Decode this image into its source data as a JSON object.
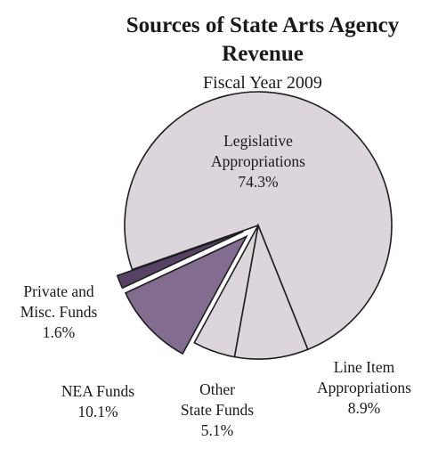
{
  "chart_data": {
    "type": "pie",
    "title_lines": [
      "Sources of State Arts Agency",
      "Revenue"
    ],
    "subtitle": "Fiscal Year 2009",
    "slices": [
      {
        "key": "legislative",
        "label_lines": [
          "Legislative",
          "Appropriations"
        ],
        "value": 74.3,
        "value_text": "74.3%",
        "color": "#dcd5dc",
        "exploded": false
      },
      {
        "key": "line-item",
        "label_lines": [
          "Line Item",
          "Appropriations"
        ],
        "value": 8.9,
        "value_text": "8.9%",
        "color": "#dcd5dc",
        "exploded": false
      },
      {
        "key": "other-state",
        "label_lines": [
          "Other",
          "State Funds"
        ],
        "value": 5.1,
        "value_text": "5.1%",
        "color": "#dcd5dc",
        "exploded": false
      },
      {
        "key": "nea",
        "label_lines": [
          "NEA Funds"
        ],
        "value": 10.1,
        "value_text": "10.1%",
        "color": "#826d90",
        "exploded": true
      },
      {
        "key": "private",
        "label_lines": [
          "Private and",
          "Misc. Funds"
        ],
        "value": 1.6,
        "value_text": "1.6%",
        "color": "#574266",
        "exploded": true
      }
    ],
    "start_angle_deg": 250.7,
    "direction": "clockwise"
  }
}
